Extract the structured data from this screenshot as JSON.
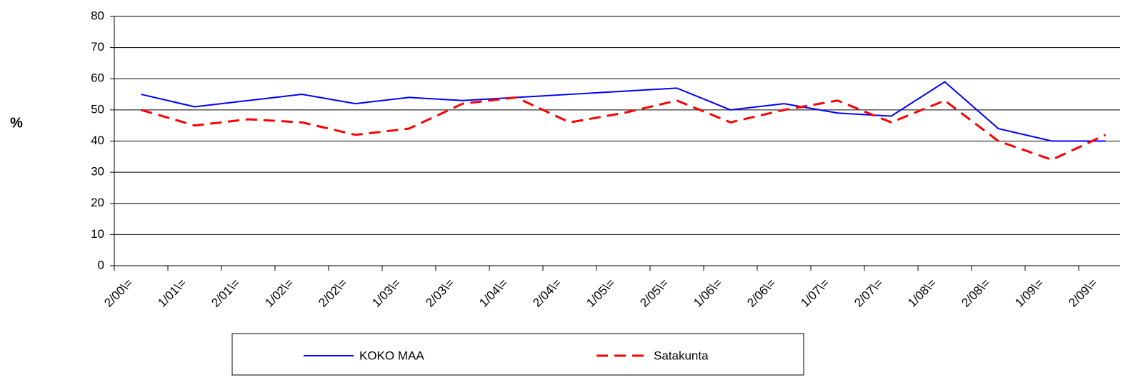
{
  "chart_data": {
    "type": "line",
    "y_label": "%",
    "categories": [
      "2/00\\=",
      "1/01\\=",
      "2/01\\=",
      "1/02\\=",
      "2/02\\=",
      "1/03\\=",
      "2/03\\=",
      "1/04\\=",
      "2/04\\=",
      "1/05\\=",
      "2/05\\=",
      "1/06\\=",
      "2/06\\=",
      "1/07\\=",
      "2/07\\=",
      "1/08\\=",
      "2/08\\=",
      "1/09\\=",
      "2/09\\="
    ],
    "series": [
      {
        "name": "KOKO MAA",
        "color": "#0000ff",
        "values": [
          55,
          51,
          53,
          55,
          52,
          54,
          53,
          54,
          55,
          56,
          57,
          50,
          52,
          49,
          48,
          59,
          44,
          40,
          40
        ]
      },
      {
        "name": "Satakunta",
        "color": "#ff0000",
        "dashed": true,
        "values": [
          50,
          45,
          47,
          46,
          42,
          44,
          52,
          54,
          46,
          49,
          53,
          46,
          50,
          53,
          46,
          53,
          40,
          34,
          42
        ]
      }
    ],
    "ylim": [
      0,
      80
    ],
    "yticks": [
      0,
      10,
      20,
      30,
      40,
      50,
      60,
      70,
      80
    ],
    "grid": true,
    "legend": "bottom"
  }
}
